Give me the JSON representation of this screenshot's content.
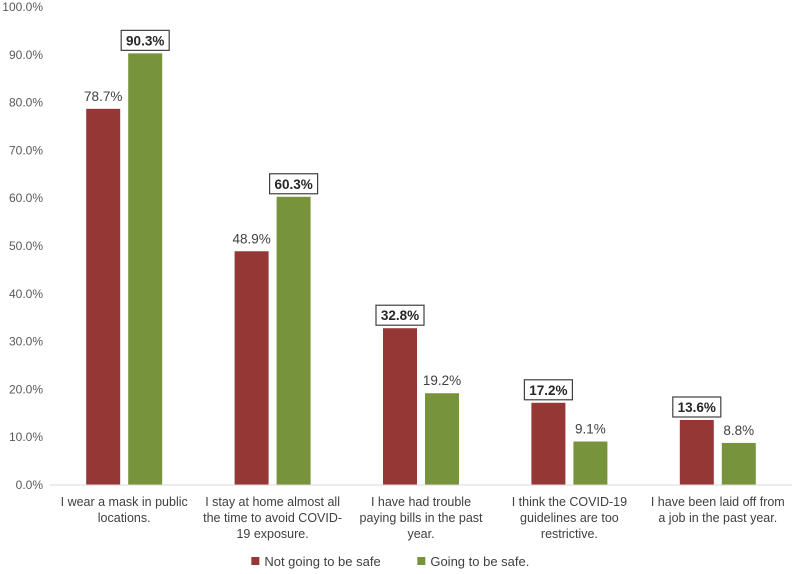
{
  "chart_data": {
    "type": "bar",
    "title": "",
    "xlabel": "",
    "ylabel": "",
    "ylim": [
      0,
      100
    ],
    "ytick_step": 10,
    "ytick_format": "{v}.0%",
    "categories": [
      [
        "I wear a mask in public",
        "locations."
      ],
      [
        "I stay at home almost all",
        "the time to avoid COVID-",
        "19 exposure."
      ],
      [
        "I have had trouble",
        "paying bills in the past",
        "year."
      ],
      [
        "I think the COVID-19",
        "guidelines are too",
        "restrictive."
      ],
      [
        "I have been laid off from",
        "a job in the past year."
      ]
    ],
    "series": [
      {
        "name": "Not going to be safe",
        "color": "#953735",
        "values": [
          78.7,
          48.9,
          32.8,
          17.2,
          13.6
        ],
        "highlight": [
          false,
          false,
          true,
          true,
          true
        ]
      },
      {
        "name": "Going to be safe.",
        "color": "#77933c",
        "values": [
          90.3,
          60.3,
          19.2,
          9.1,
          8.8
        ],
        "highlight": [
          true,
          true,
          false,
          false,
          false
        ]
      }
    ],
    "legend": "bottom-center",
    "grid": false
  }
}
